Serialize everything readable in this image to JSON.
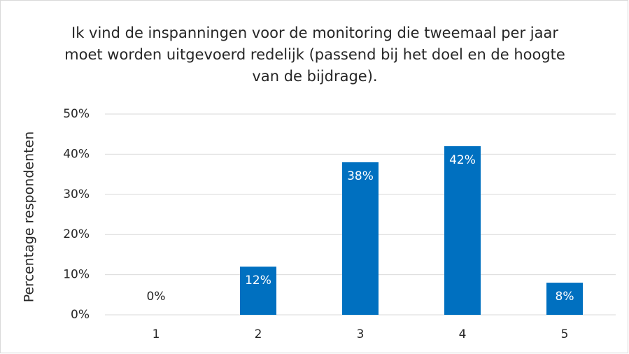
{
  "chart_data": {
    "type": "bar",
    "title": "Ik vind de inspanningen voor de monitoring die tweemaal per jaar moet worden uitgevoerd redelijk (passend bij het doel en de hoogte van de bijdrage).",
    "y_label": "Percentage respondenten",
    "categories": [
      "1",
      "2",
      "3",
      "4",
      "5"
    ],
    "values": [
      0,
      12,
      38,
      42,
      8
    ],
    "value_labels": [
      "0%",
      "12%",
      "38%",
      "42%",
      "8%"
    ],
    "color": "#0070c0",
    "ylim": [
      0,
      50
    ],
    "yticks": [
      {
        "value": 0,
        "label": "0%"
      },
      {
        "value": 10,
        "label": "10%"
      },
      {
        "value": 20,
        "label": "20%"
      },
      {
        "value": 30,
        "label": "30%"
      },
      {
        "value": 40,
        "label": "40%"
      },
      {
        "value": 50,
        "label": "50%"
      }
    ],
    "grid": true
  }
}
